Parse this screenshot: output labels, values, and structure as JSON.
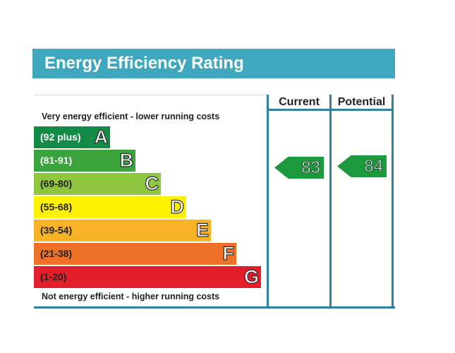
{
  "title": "Energy Efficiency Rating",
  "caption_top": "Very energy efficient - lower running costs",
  "caption_bottom": "Not energy efficient - higher running costs",
  "columns": {
    "current": "Current",
    "potential": "Potential"
  },
  "bands": [
    {
      "range": "(92 plus)",
      "letter": "A",
      "color": "#138b47",
      "text_color": "#ffffff"
    },
    {
      "range": "(81-91)",
      "letter": "B",
      "color": "#3aa33c",
      "text_color": "#ffffff"
    },
    {
      "range": "(69-80)",
      "letter": "C",
      "color": "#8fc640",
      "text_color": "#222222"
    },
    {
      "range": "(55-68)",
      "letter": "D",
      "color": "#fff200",
      "text_color": "#222222"
    },
    {
      "range": "(39-54)",
      "letter": "E",
      "color": "#f8b226",
      "text_color": "#222222"
    },
    {
      "range": "(21-38)",
      "letter": "F",
      "color": "#ee7127",
      "text_color": "#222222"
    },
    {
      "range": "(1-20)",
      "letter": "G",
      "color": "#e21e2b",
      "text_color": "#222222"
    }
  ],
  "ratings": {
    "current": "83",
    "potential": "84",
    "color": "#1a9a3c"
  }
}
